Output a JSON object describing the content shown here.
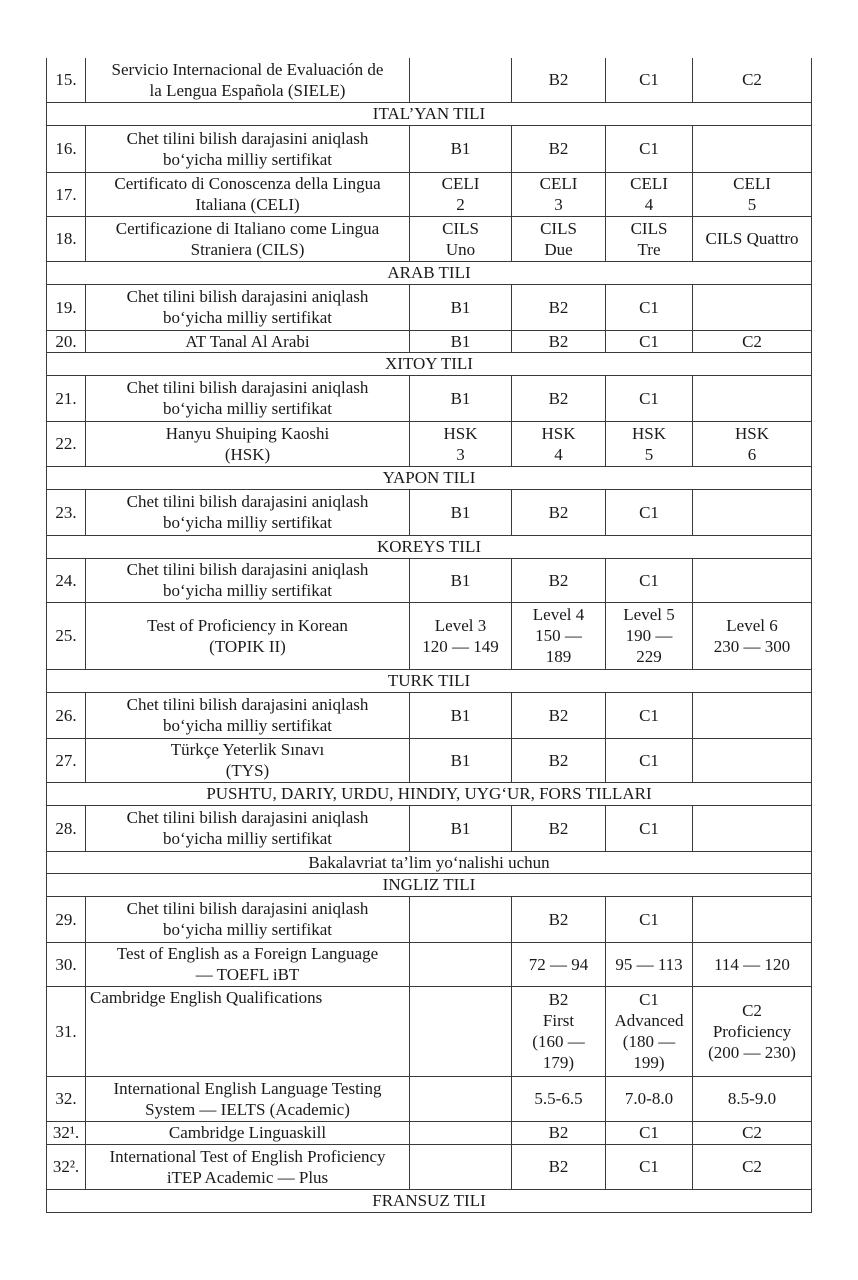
{
  "table": {
    "rows": [
      {
        "num": "15.",
        "name": "Servicio Internacional de Evaluación de\nla Lengua Española (SIELE)",
        "cells": [
          "",
          "B2",
          "C1",
          "C2"
        ]
      },
      {
        "section": "ITAL’YAN TILI"
      },
      {
        "num": "16.",
        "name": "Chet tilini bilish darajasini aniqlash\nbo‘yicha milliy sertifikat",
        "cells": [
          "B1",
          "B2",
          "C1",
          ""
        ]
      },
      {
        "num": "17.",
        "name": "Certificato di Conoscenza della Lingua\nItaliana (CELI)",
        "cells": [
          "CELI\n2",
          "CELI\n3",
          "CELI\n4",
          "CELI\n5"
        ]
      },
      {
        "num": "18.",
        "name": "Certificazione di Italiano come Lingua\nStraniera (CILS)",
        "cells": [
          "CILS\nUno",
          "CILS\nDue",
          "CILS\nTre",
          "CILS Quattro"
        ]
      },
      {
        "section": "ARAB TILI"
      },
      {
        "num": "19.",
        "name": "Chet tilini bilish darajasini aniqlash\nbo‘yicha milliy sertifikat",
        "cells": [
          "B1",
          "B2",
          "C1",
          ""
        ]
      },
      {
        "num": "20.",
        "name": "AT Tanal Al Arabi",
        "cells": [
          "B1",
          "B2",
          "C1",
          "C2"
        ]
      },
      {
        "section": "XITOY TILI"
      },
      {
        "num": "21.",
        "name": "Chet tilini bilish darajasini aniqlash\nbo‘yicha milliy sertifikat",
        "cells": [
          "B1",
          "B2",
          "C1",
          ""
        ]
      },
      {
        "num": "22.",
        "name": "Hanyu Shuiping Kaoshi\n(HSK)",
        "cells": [
          "HSK\n3",
          "HSK\n4",
          "HSK\n5",
          "HSK\n6"
        ]
      },
      {
        "section": "YAPON TILI"
      },
      {
        "num": "23.",
        "name": "Chet tilini bilish darajasini aniqlash\nbo‘yicha milliy sertifikat",
        "cells": [
          "B1",
          "B2",
          "C1",
          ""
        ]
      },
      {
        "section": "KOREYS TILI"
      },
      {
        "num": "24.",
        "name": "Chet tilini bilish darajasini aniqlash\nbo‘yicha milliy sertifikat",
        "cells": [
          "B1",
          "B2",
          "C1",
          ""
        ]
      },
      {
        "num": "25.",
        "name": "Test of Proficiency in Korean\n(TOPIK II)\n ",
        "cells": [
          "Level 3\n120 — 149",
          "Level 4\n150 —\n189",
          "Level 5\n190 —\n229",
          "Level 6\n230 — 300"
        ]
      },
      {
        "section": "TURK TILI"
      },
      {
        "num": "26.",
        "name": "Chet tilini bilish darajasini aniqlash\nbo‘yicha milliy sertifikat",
        "cells": [
          "B1",
          "B2",
          "C1",
          ""
        ]
      },
      {
        "num": "27.",
        "name": "Türkçe Yeterlik Sınavı\n(TYS)",
        "cells": [
          "B1",
          "B2",
          "C1",
          ""
        ]
      },
      {
        "section": "PUSHTU, DARIY, URDU, HINDIY, UYG‘UR, FORS TILLARI"
      },
      {
        "num": "28.",
        "name": "Chet tilini bilish darajasini aniqlash\nbo‘yicha milliy sertifikat",
        "cells": [
          "B1",
          "B2",
          "C1",
          ""
        ]
      },
      {
        "section": "Bakalavriat ta’lim yo‘nalishi uchun"
      },
      {
        "section": "INGLIZ TILI"
      },
      {
        "num": "29.",
        "name": "Chet tilini bilish darajasini aniqlash\nbo‘yicha milliy sertifikat",
        "cells": [
          "",
          "B2",
          "C1",
          ""
        ]
      },
      {
        "num": "30.",
        "name": "Test of English as a Foreign Language\n— TOEFL iBT",
        "cells": [
          "",
          "72 — 94",
          "95 — 113",
          "114 — 120"
        ]
      },
      {
        "num": "31.",
        "name": "Cambridge English Qualifications",
        "top": true,
        "cells": [
          "",
          "B2\nFirst\n(160 —\n179)",
          "C1\nAdvanced\n(180 —\n199)",
          "C2\nProficiency\n(200 — 230)"
        ]
      },
      {
        "num": "32.",
        "name": "International English Language Testing\nSystem — IELTS (Academic)",
        "cells": [
          "",
          "5.5-6.5",
          "7.0-8.0",
          "8.5-9.0"
        ]
      },
      {
        "num": "32¹.",
        "name": "Cambridge Linguaskill",
        "cells": [
          "",
          "B2",
          "C1",
          "C2"
        ]
      },
      {
        "num": "32².",
        "name": "International Test of English Proficiency\niTEP Academic — Plus",
        "cells": [
          "",
          "B2",
          "C1",
          "C2"
        ]
      },
      {
        "section": "FRANSUZ TILI"
      }
    ]
  }
}
